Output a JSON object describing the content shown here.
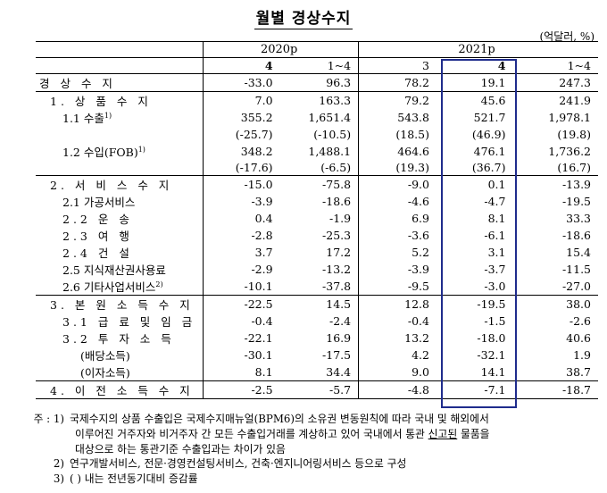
{
  "title": "월별 경상수지",
  "unit": "(억달러, %)",
  "header": {
    "year1": "2020p",
    "year2": "2021p",
    "cols": [
      "4",
      "1~4",
      "3",
      "4",
      "1~4"
    ]
  },
  "rows": [
    {
      "label": "경 상 수 지",
      "v": [
        "-33.0",
        "96.3",
        "78.2",
        "19.1",
        "247.3"
      ]
    },
    {
      "label": "1. 상 품 수 지",
      "v": [
        "7.0",
        "163.3",
        "79.2",
        "45.6",
        "241.9"
      ]
    },
    {
      "label": "1.1 수출",
      "sup": "1)",
      "v": [
        "355.2",
        "1,651.4",
        "543.8",
        "521.7",
        "1,978.1"
      ]
    },
    {
      "label": "",
      "v": [
        "(-25.7)",
        "(-10.5)",
        "(18.5)",
        "(46.9)",
        "(19.8)"
      ]
    },
    {
      "label": "1.2 수입(FOB)",
      "sup": "1)",
      "v": [
        "348.2",
        "1,488.1",
        "464.6",
        "476.1",
        "1,736.2"
      ]
    },
    {
      "label": "",
      "v": [
        "(-17.6)",
        "(-6.5)",
        "(19.3)",
        "(36.7)",
        "(16.7)"
      ]
    },
    {
      "label": "2. 서 비 스 수 지",
      "v": [
        "-15.0",
        "-75.8",
        "-9.0",
        "0.1",
        "-13.9"
      ]
    },
    {
      "label": "2.1 가공서비스",
      "v": [
        "-3.9",
        "-18.6",
        "-4.6",
        "-4.7",
        "-19.5"
      ]
    },
    {
      "label": "2.2 운 송",
      "v": [
        "0.4",
        "-1.9",
        "6.9",
        "8.1",
        "33.3"
      ]
    },
    {
      "label": "2.3 여 행",
      "v": [
        "-2.8",
        "-25.3",
        "-3.6",
        "-6.1",
        "-18.6"
      ]
    },
    {
      "label": "2.4 건 설",
      "v": [
        "3.7",
        "17.2",
        "5.2",
        "3.1",
        "15.4"
      ]
    },
    {
      "label": "2.5 지식재산권사용료",
      "v": [
        "-2.9",
        "-13.2",
        "-3.9",
        "-3.7",
        "-11.5"
      ]
    },
    {
      "label": "2.6 기타사업서비스",
      "sup": "2)",
      "v": [
        "-10.1",
        "-37.8",
        "-9.5",
        "-3.0",
        "-27.0"
      ]
    },
    {
      "label": "3. 본 원 소 득 수 지",
      "v": [
        "-22.5",
        "14.5",
        "12.8",
        "-19.5",
        "38.0"
      ]
    },
    {
      "label": "3.1 급 료 및 임 금",
      "v": [
        "-0.4",
        "-2.4",
        "-0.4",
        "-1.5",
        "-2.6"
      ]
    },
    {
      "label": "3.2 투 자 소 득",
      "v": [
        "-22.1",
        "16.9",
        "13.2",
        "-18.0",
        "40.6"
      ]
    },
    {
      "label": "(배당소득)",
      "v": [
        "-30.1",
        "-17.5",
        "4.2",
        "-32.1",
        "1.9"
      ]
    },
    {
      "label": "(이자소득)",
      "v": [
        "8.1",
        "34.4",
        "9.0",
        "14.1",
        "38.7"
      ]
    },
    {
      "label": "4. 이 전 소 득 수 지",
      "v": [
        "-2.5",
        "-5.7",
        "-4.8",
        "-7.1",
        "-18.7"
      ]
    }
  ],
  "notes": {
    "prefix": "주 : 1)",
    "n1_line1": "국제수지의 상품 수출입은 국제수지매뉴얼(BPM6)의 소유권 변동원칙에 따라 국내 및 해외에서",
    "n1_line2a": "이루어진 거주자와 비거주자 간 모든 수출입거래를 계상하고 있어 국내에서 통관 ",
    "n1_line2u": "신고된",
    "n1_line2b": " 물품을",
    "n1_line3": "대상으로 하는 통관기준 수출입과는 차이가 있음",
    "k2": "2)",
    "n2": "연구개발서비스, 전문·경영컨설팅서비스, 건축·엔지니어링서비스 등으로 구성",
    "k3": "3)",
    "n3": "( ) 내는 전년동기대비 증감률"
  }
}
